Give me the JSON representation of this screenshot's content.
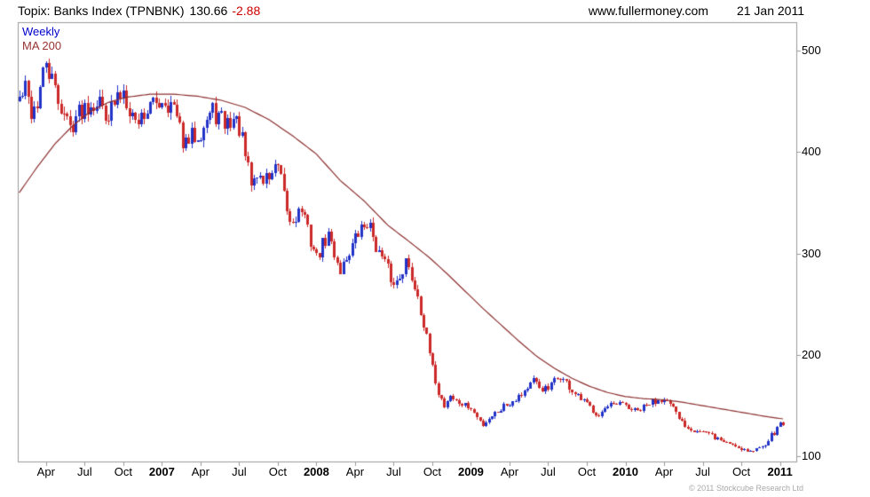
{
  "header": {
    "instrument": "Topix: Banks Index (TPNBNK)",
    "last_price": "130.66",
    "change": "-2.88",
    "site": "www.fullermoney.com",
    "date": "21 Jan 2011"
  },
  "chart": {
    "legend": {
      "timeframe": "Weekly",
      "ma_label": "MA 200"
    },
    "copyright": "© 2011 Stockcube Research Ltd",
    "colors": {
      "up": "#2233c8",
      "down": "#cc2a2a",
      "ma": "#8b2e2e",
      "frame": "#9a9a9a",
      "label": "#000000",
      "timeframe_text": "#0000cc",
      "ma_text": "#993333",
      "change_text": "#cc0000"
    }
  },
  "chart_data": {
    "type": "candlestick",
    "title": "Topix: Banks Index (TPNBNK)",
    "timeframe": "Weekly",
    "overlay": "MA 200",
    "last_price": 130.66,
    "change": -2.88,
    "as_of": "21 Jan 2011",
    "grid": false,
    "legend_position": "top-left",
    "y_axis_side": "right",
    "y_ticks": [
      500,
      400,
      300,
      200,
      100
    ],
    "value_range": [
      95,
      528
    ],
    "weeks_total": 262,
    "seed": 42,
    "close_noise": 0.025,
    "wick_noise": 0.016,
    "x_ticks": [
      {
        "week": 9,
        "label": "Apr"
      },
      {
        "week": 22,
        "label": "Jul"
      },
      {
        "week": 35,
        "label": "Oct"
      },
      {
        "week": 48,
        "label": "2007",
        "year": true
      },
      {
        "week": 61,
        "label": "Apr"
      },
      {
        "week": 74,
        "label": "Jul"
      },
      {
        "week": 87,
        "label": "Oct"
      },
      {
        "week": 100,
        "label": "2008",
        "year": true
      },
      {
        "week": 113,
        "label": "Apr"
      },
      {
        "week": 126,
        "label": "Jul"
      },
      {
        "week": 139,
        "label": "Oct"
      },
      {
        "week": 152,
        "label": "2009",
        "year": true
      },
      {
        "week": 165,
        "label": "Apr"
      },
      {
        "week": 178,
        "label": "Jul"
      },
      {
        "week": 191,
        "label": "Oct"
      },
      {
        "week": 204,
        "label": "2010",
        "year": true
      },
      {
        "week": 217,
        "label": "Apr"
      },
      {
        "week": 230,
        "label": "Jul"
      },
      {
        "week": 243,
        "label": "Oct"
      },
      {
        "week": 256,
        "label": "2011",
        "year": true
      }
    ],
    "price_anchors": [
      [
        0,
        452
      ],
      [
        2,
        462
      ],
      [
        4,
        440
      ],
      [
        6,
        448
      ],
      [
        9,
        488
      ],
      [
        11,
        468
      ],
      [
        13,
        452
      ],
      [
        15,
        438
      ],
      [
        17,
        424
      ],
      [
        19,
        436
      ],
      [
        22,
        446
      ],
      [
        26,
        452
      ],
      [
        30,
        438
      ],
      [
        33,
        452
      ],
      [
        35,
        462
      ],
      [
        37,
        445
      ],
      [
        39,
        430
      ],
      [
        43,
        442
      ],
      [
        46,
        448
      ],
      [
        48,
        453
      ],
      [
        52,
        443
      ],
      [
        54,
        420
      ],
      [
        56,
        405
      ],
      [
        58,
        415
      ],
      [
        61,
        422
      ],
      [
        63,
        432
      ],
      [
        65,
        440
      ],
      [
        69,
        428
      ],
      [
        72,
        432
      ],
      [
        74,
        424
      ],
      [
        76,
        395
      ],
      [
        78,
        368
      ],
      [
        80,
        378
      ],
      [
        82,
        372
      ],
      [
        85,
        380
      ],
      [
        87,
        383
      ],
      [
        89,
        355
      ],
      [
        91,
        330
      ],
      [
        93,
        338
      ],
      [
        95,
        344
      ],
      [
        97,
        322
      ],
      [
        100,
        296
      ],
      [
        102,
        308
      ],
      [
        104,
        318
      ],
      [
        106,
        300
      ],
      [
        108,
        284
      ],
      [
        110,
        296
      ],
      [
        113,
        314
      ],
      [
        115,
        324
      ],
      [
        117,
        331
      ],
      [
        119,
        318
      ],
      [
        121,
        300
      ],
      [
        124,
        284
      ],
      [
        126,
        268
      ],
      [
        128,
        280
      ],
      [
        130,
        292
      ],
      [
        132,
        276
      ],
      [
        134,
        260
      ],
      [
        136,
        230
      ],
      [
        139,
        186
      ],
      [
        141,
        163
      ],
      [
        143,
        150
      ],
      [
        145,
        160
      ],
      [
        147,
        154
      ],
      [
        150,
        150
      ],
      [
        152,
        147
      ],
      [
        154,
        138
      ],
      [
        156,
        132
      ],
      [
        158,
        138
      ],
      [
        160,
        143
      ],
      [
        163,
        150
      ],
      [
        165,
        153
      ],
      [
        167,
        158
      ],
      [
        169,
        162
      ],
      [
        171,
        168
      ],
      [
        173,
        174
      ],
      [
        175,
        168
      ],
      [
        178,
        166
      ],
      [
        180,
        174
      ],
      [
        182,
        179
      ],
      [
        184,
        172
      ],
      [
        186,
        164
      ],
      [
        188,
        158
      ],
      [
        191,
        151
      ],
      [
        193,
        146
      ],
      [
        195,
        142
      ],
      [
        197,
        146
      ],
      [
        199,
        149
      ],
      [
        202,
        151
      ],
      [
        204,
        150
      ],
      [
        206,
        146
      ],
      [
        208,
        144
      ],
      [
        210,
        148
      ],
      [
        212,
        152
      ],
      [
        215,
        156
      ],
      [
        217,
        159
      ],
      [
        219,
        150
      ],
      [
        221,
        141
      ],
      [
        223,
        134
      ],
      [
        225,
        129
      ],
      [
        228,
        126
      ],
      [
        230,
        124
      ],
      [
        232,
        121
      ],
      [
        234,
        119
      ],
      [
        236,
        116
      ],
      [
        238,
        114
      ],
      [
        241,
        111
      ],
      [
        243,
        108
      ],
      [
        245,
        106
      ],
      [
        247,
        105
      ],
      [
        249,
        109
      ],
      [
        251,
        114
      ],
      [
        253,
        120
      ],
      [
        255,
        127
      ],
      [
        256,
        133.5
      ],
      [
        257,
        130.66
      ]
    ],
    "ma_anchors": [
      [
        0,
        360
      ],
      [
        6,
        385
      ],
      [
        12,
        408
      ],
      [
        18,
        426
      ],
      [
        24,
        440
      ],
      [
        30,
        449
      ],
      [
        36,
        454
      ],
      [
        44,
        457
      ],
      [
        52,
        457
      ],
      [
        60,
        455
      ],
      [
        68,
        451
      ],
      [
        76,
        444
      ],
      [
        84,
        432
      ],
      [
        92,
        416
      ],
      [
        100,
        398
      ],
      [
        108,
        372
      ],
      [
        116,
        352
      ],
      [
        124,
        328
      ],
      [
        132,
        310
      ],
      [
        138,
        296
      ],
      [
        144,
        280
      ],
      [
        150,
        263
      ],
      [
        156,
        246
      ],
      [
        162,
        230
      ],
      [
        168,
        214
      ],
      [
        174,
        199
      ],
      [
        180,
        187
      ],
      [
        186,
        177
      ],
      [
        192,
        169
      ],
      [
        198,
        163
      ],
      [
        204,
        159
      ],
      [
        210,
        157
      ],
      [
        216,
        156
      ],
      [
        222,
        154
      ],
      [
        228,
        151
      ],
      [
        234,
        148
      ],
      [
        240,
        145
      ],
      [
        246,
        142
      ],
      [
        252,
        139
      ],
      [
        257,
        137
      ]
    ]
  }
}
